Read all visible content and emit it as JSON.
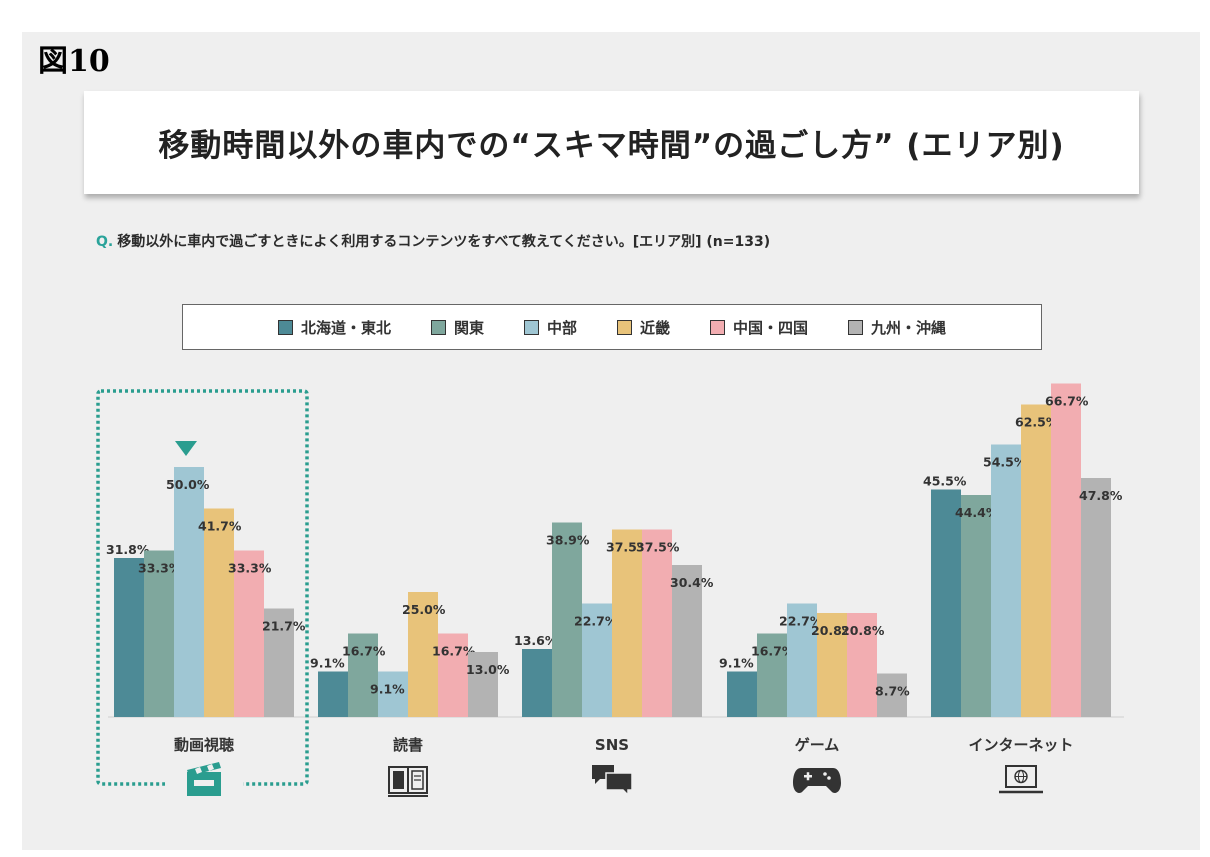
{
  "figure_label": "図10",
  "title": "移動時間以外の車内での“スキマ時間”の過ごし方” (エリア別)",
  "question": {
    "prefix": "Q.",
    "text": "移動以外に車内で過ごすときによく利用するコンテンツをすべて教えてください。[エリア別] (n=133)"
  },
  "colors": {
    "北海道・東北": "#4d8a96",
    "関東": "#7fa79d",
    "中部": "#9fc6d3",
    "近畿": "#e8c37a",
    "中国・四国": "#f2adb1",
    "九州・沖縄": "#b3b3b3",
    "highlight": "#2a9d8f"
  },
  "chart_data": {
    "type": "bar",
    "categories": [
      "動画視聴",
      "読書",
      "SNS",
      "ゲーム",
      "インターネット"
    ],
    "series": [
      {
        "name": "北海道・東北",
        "values": [
          31.8,
          9.1,
          13.6,
          9.1,
          45.5
        ],
        "labels": [
          "31.8%",
          "9.1%",
          "13.6%",
          "9.1%",
          "45.5%"
        ]
      },
      {
        "name": "関東",
        "values": [
          33.3,
          16.7,
          38.9,
          16.7,
          44.4
        ],
        "labels": [
          "33.3%",
          "16.7%",
          "38.9%",
          "16.7%",
          "44.4%"
        ]
      },
      {
        "name": "中部",
        "values": [
          50.0,
          9.1,
          22.7,
          22.7,
          54.5
        ],
        "labels": [
          "50.0%",
          "9.1%",
          "22.7%",
          "22.7%",
          "54.5%"
        ]
      },
      {
        "name": "近畿",
        "values": [
          41.7,
          25.0,
          37.5,
          20.8,
          62.5
        ],
        "labels": [
          "41.7%",
          "25.0%",
          "37.5%",
          "20.8%",
          "62.5%"
        ]
      },
      {
        "name": "中国・四国",
        "values": [
          33.3,
          16.7,
          37.5,
          20.8,
          66.7
        ],
        "labels": [
          "33.3%",
          "16.7%",
          "37.5%",
          "20.8%",
          "66.7%"
        ]
      },
      {
        "name": "九州・沖縄",
        "values": [
          21.7,
          13.0,
          30.4,
          8.7,
          47.8
        ],
        "labels": [
          "21.7%",
          "13.0%",
          "30.4%",
          "8.7%",
          "47.8%"
        ]
      }
    ],
    "ylim": [
      0,
      70
    ],
    "highlighted_category": "動画視聴",
    "category_icons": [
      "clapperboard-icon",
      "book-icon",
      "chat-bubbles-icon",
      "gamepad-icon",
      "laptop-globe-icon"
    ],
    "legend_position": "top"
  }
}
